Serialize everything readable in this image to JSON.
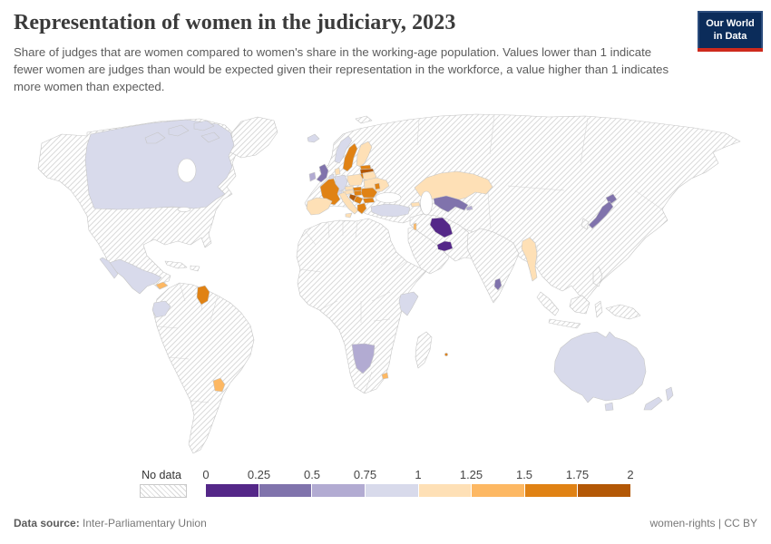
{
  "header": {
    "title": "Representation of women in the judiciary, 2023",
    "subtitle": "Share of judges that are women compared to women's share in the working-age population. Values lower than 1 indicate fewer women are judges than would be expected given their representation in the workforce, a value higher than 1 indicates more women than expected.",
    "logo_line1": "Our World",
    "logo_line2": "in Data"
  },
  "legend": {
    "no_data_label": "No data",
    "ticks": [
      "0",
      "0.25",
      "0.5",
      "0.75",
      "1",
      "1.25",
      "1.5",
      "1.75",
      "2"
    ]
  },
  "footer": {
    "source_label": "Data source:",
    "source_value": "Inter-Parliamentary Union",
    "right_text": "women-rights | CC BY"
  },
  "chart_data": {
    "type": "choropleth_map",
    "title": "Representation of women in the judiciary, 2023",
    "value_range": [
      0,
      2
    ],
    "legend_ticks": [
      0,
      0.25,
      0.5,
      0.75,
      1,
      1.25,
      1.5,
      1.75,
      2
    ],
    "no_data": {
      "label": "No data",
      "pattern": "diagonal-hatch"
    },
    "bins": [
      {
        "label": "0-0.25",
        "color": "#542788"
      },
      {
        "label": "0.25-0.5",
        "color": "#8073ac"
      },
      {
        "label": "0.5-0.75",
        "color": "#b2abd2"
      },
      {
        "label": "0.75-1",
        "color": "#d8daeb"
      },
      {
        "label": "1-1.25",
        "color": "#fee0b6"
      },
      {
        "label": "1.25-1.5",
        "color": "#fdb863"
      },
      {
        "label": "1.5-1.75",
        "color": "#e08214"
      },
      {
        "label": "1.75-2",
        "color": "#b35806"
      }
    ],
    "countries": [
      {
        "name": "Canada",
        "bin": "0.75-1"
      },
      {
        "name": "Mexico",
        "bin": "0.75-1"
      },
      {
        "name": "Panama",
        "bin": "1.25-1.5"
      },
      {
        "name": "Ecuador",
        "bin": "0.75-1"
      },
      {
        "name": "Guyana",
        "bin": "1.5-1.75"
      },
      {
        "name": "Uruguay",
        "bin": "1.25-1.5"
      },
      {
        "name": "Iceland",
        "bin": "0.75-1"
      },
      {
        "name": "Ireland",
        "bin": "0.5-0.75"
      },
      {
        "name": "United Kingdom",
        "bin": "0.25-0.5"
      },
      {
        "name": "Norway",
        "bin": "0.75-1"
      },
      {
        "name": "Sweden",
        "bin": "1.5-1.75"
      },
      {
        "name": "Finland",
        "bin": "1-1.25"
      },
      {
        "name": "Denmark",
        "bin": "1-1.25"
      },
      {
        "name": "Netherlands",
        "bin": "0.75-1"
      },
      {
        "name": "Germany",
        "bin": "0.75-1"
      },
      {
        "name": "France",
        "bin": "1.5-1.75"
      },
      {
        "name": "Spain",
        "bin": "1-1.25"
      },
      {
        "name": "Italy",
        "bin": "1-1.25"
      },
      {
        "name": "Switzerland",
        "bin": "0.75-1"
      },
      {
        "name": "Austria",
        "bin": "1-1.25"
      },
      {
        "name": "Czechia",
        "bin": "1-1.25"
      },
      {
        "name": "Poland",
        "bin": "1-1.25"
      },
      {
        "name": "Estonia",
        "bin": "1.5-1.75"
      },
      {
        "name": "Latvia",
        "bin": "1.75-2"
      },
      {
        "name": "Lithuania",
        "bin": "1.5-1.75"
      },
      {
        "name": "Belarus",
        "bin": "1-1.25"
      },
      {
        "name": "Ukraine",
        "bin": "1-1.25"
      },
      {
        "name": "Moldova",
        "bin": "1.5-1.75"
      },
      {
        "name": "Slovakia",
        "bin": "1.5-1.75"
      },
      {
        "name": "Hungary",
        "bin": "1.5-1.75"
      },
      {
        "name": "Romania",
        "bin": "1.5-1.75"
      },
      {
        "name": "Croatia",
        "bin": "1.75-2"
      },
      {
        "name": "Serbia",
        "bin": "1.5-1.75"
      },
      {
        "name": "Bulgaria",
        "bin": "1.5-1.75"
      },
      {
        "name": "Greece",
        "bin": "1.5-1.75"
      },
      {
        "name": "Turkey",
        "bin": "0.75-1"
      },
      {
        "name": "Georgia",
        "bin": "1-1.25"
      },
      {
        "name": "Azerbaijan",
        "bin": "0.5-0.75"
      },
      {
        "name": "Iraq",
        "bin": "0-0.25"
      },
      {
        "name": "Israel",
        "bin": "1.25-1.5"
      },
      {
        "name": "United Arab Emirates",
        "bin": "0-0.25"
      },
      {
        "name": "Kazakhstan",
        "bin": "1-1.25"
      },
      {
        "name": "Uzbekistan",
        "bin": "0.25-0.5"
      },
      {
        "name": "Kyrgyzstan",
        "bin": "0.5-0.75"
      },
      {
        "name": "Myanmar",
        "bin": "1-1.25"
      },
      {
        "name": "Sri Lanka",
        "bin": "0.25-0.5"
      },
      {
        "name": "Japan",
        "bin": "0.25-0.5"
      },
      {
        "name": "Kenya",
        "bin": "0.75-1"
      },
      {
        "name": "Namibia",
        "bin": "0.5-0.75"
      },
      {
        "name": "Lesotho",
        "bin": "1.25-1.5"
      },
      {
        "name": "Mauritius",
        "bin": "1.5-1.75"
      },
      {
        "name": "Australia",
        "bin": "0.75-1"
      },
      {
        "name": "New Zealand",
        "bin": "0.75-1"
      }
    ]
  }
}
